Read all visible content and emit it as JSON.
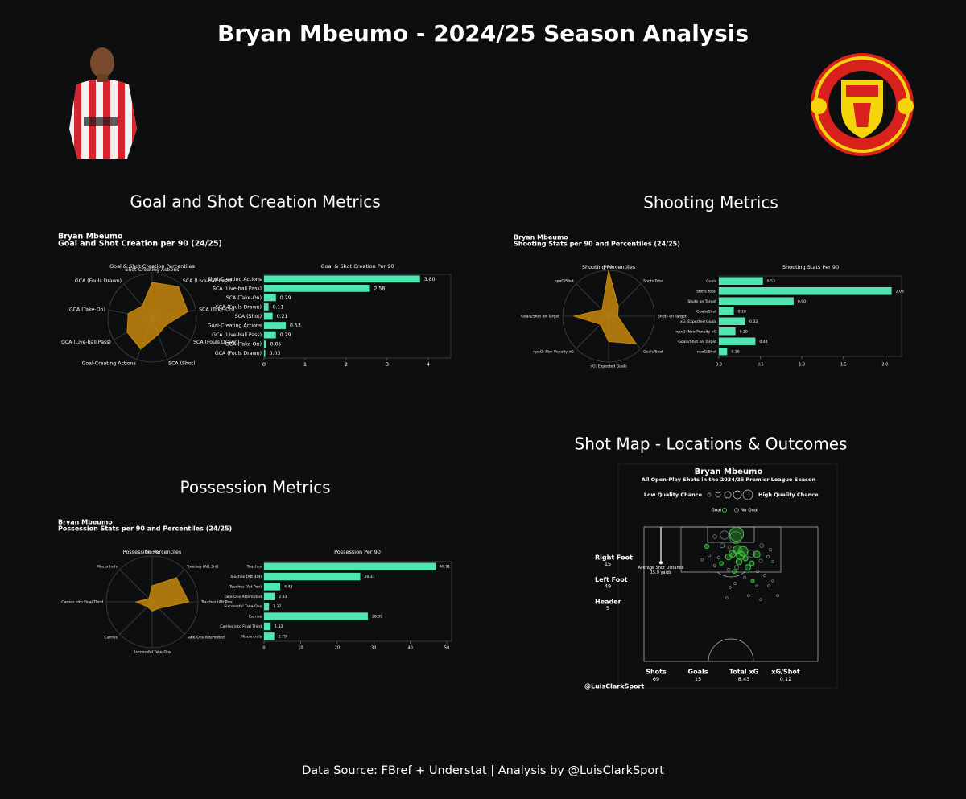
{
  "title": "Bryan Mbeumo - 2024/25 Season Analysis",
  "footer": "Data Source: FBref + Understat | Analysis by @LuisClarkSport",
  "sections": [
    {
      "heading": "Goal and Shot Creation Metrics",
      "player": "Bryan Mbeumo",
      "subtitle": "Goal and Shot Creation per 90 (24/25)"
    },
    {
      "heading": "Shooting Metrics",
      "player": "Bryan Mbeumo",
      "subtitle": "Shooting Stats per 90 and Percentiles (24/25)"
    },
    {
      "heading": "Possession Metrics",
      "player": "Bryan Mbeumo",
      "subtitle": "Possession Stats per 90 and Percentiles (24/25)"
    },
    {
      "heading": "Shot Map - Locations & Outcomes"
    }
  ],
  "chart_data": [
    {
      "type": "radar",
      "title": "Goal & Shot Creation Percentiles",
      "color": "#c8870e",
      "rlim": [
        0,
        100
      ],
      "categories": [
        "Shot-Creating Actions",
        "SCA (Live-ball Pass)",
        "SCA (Take-On)",
        "SCA (Fouls Drawn)",
        "SCA (Shot)",
        "Goal-Creating Actions",
        "GCA (Live-ball Pass)",
        "GCA (Take-On)",
        "GCA (Fouls Drawn)"
      ],
      "values": [
        80,
        92,
        82,
        35,
        40,
        75,
        65,
        55,
        35
      ]
    },
    {
      "type": "hbar",
      "title": "Goal & Shot Creation Per 90",
      "color": "#4fe6b0",
      "categories": [
        "Shot-Creating Actions",
        "SCA (Live-ball Pass)",
        "SCA (Take-On)",
        "SCA (Fouls Drawn)",
        "SCA (Shot)",
        "Goal-Creating Actions",
        "GCA (Live-ball Pass)",
        "GCA (Take-On)",
        "GCA (Fouls Drawn)"
      ],
      "values": [
        3.8,
        2.58,
        0.29,
        0.11,
        0.21,
        0.53,
        0.29,
        0.05,
        0.03
      ],
      "value_labels": [
        "3.80",
        "2.58",
        "0.29",
        "0.11",
        "0.21",
        "0.53",
        "0.29",
        "0.05",
        "0.03"
      ],
      "xlim": [
        0,
        4.55
      ],
      "xticks": [
        0,
        1,
        2,
        3,
        4
      ]
    },
    {
      "type": "radar",
      "title": "Shooting Percentiles",
      "color": "#c8870e",
      "rlim": [
        0,
        100
      ],
      "categories": [
        "Goals",
        "Shots Total",
        "Shots on Target",
        "Goals/Shot",
        "xG: Expected Goals",
        "npxG: Non-Penalty xG",
        "Goals/Shot on Target",
        "npxG/Shot"
      ],
      "values": [
        100,
        30,
        20,
        85,
        55,
        25,
        75,
        20
      ]
    },
    {
      "type": "hbar",
      "title": "Shooting Stats Per 90",
      "color": "#4fe6b0",
      "categories": [
        "Goals",
        "Shots Total",
        "Shots on Target",
        "Goals/Shot",
        "xG: Expected Goals",
        "npxG: Non-Penalty xG",
        "Goals/Shot on Target",
        "npxG/Shot"
      ],
      "values": [
        0.53,
        2.08,
        0.9,
        0.18,
        0.32,
        0.2,
        0.44,
        0.1
      ],
      "value_labels": [
        "0.53",
        "2.08",
        "0.90",
        "0.18",
        "0.32",
        "0.20",
        "0.44",
        "0.10"
      ],
      "xlim": [
        0,
        2.2
      ],
      "xticks": [
        {
          "value": 0,
          "label": "0.0"
        },
        {
          "value": 0.5,
          "label": "0.5"
        },
        {
          "value": 1,
          "label": "1.0"
        },
        {
          "value": 1.5,
          "label": "1.5"
        },
        {
          "value": 2,
          "label": "2.0"
        }
      ]
    },
    {
      "type": "radar",
      "title": "Possession Percentiles",
      "color": "#c8870e",
      "rlim": [
        0,
        100
      ],
      "categories": [
        "Touches",
        "Touches (Att 3rd)",
        "Touches (Att Pen)",
        "Take-Ons Attempted",
        "Successful Take-Ons",
        "Carries",
        "Carries into Final Third",
        "Miscontrols"
      ],
      "values": [
        35,
        75,
        80,
        20,
        20,
        15,
        35,
        10
      ]
    },
    {
      "type": "hbar",
      "title": "Possession Per 90",
      "color": "#4fe6b0",
      "categories": [
        "Touches",
        "Touches (Att 3rd)",
        "Touches (Att Pen)",
        "Take-Ons Attempted",
        "Successful Take-Ons",
        "Carries",
        "Carries into Final Third",
        "Miscontrols"
      ],
      "values": [
        46.91,
        26.31,
        4.43,
        2.93,
        1.37,
        28.39,
        1.82,
        2.79
      ],
      "value_labels": [
        "46.91",
        "26.31",
        "4.43",
        "2.93",
        "1.37",
        "28.39",
        "1.82",
        "2.79"
      ],
      "xlim": [
        0,
        51.3
      ],
      "xticks": [
        0,
        10,
        20,
        30,
        40,
        50
      ]
    },
    {
      "type": "scatter",
      "title": "Bryan Mbeumo",
      "subtitle": "All Open-Play Shots in the 2024/25 Premier League Season",
      "size_legend": [
        "Low Quality Chance",
        "High Quality Chance"
      ],
      "xlim": [
        0,
        80
      ],
      "ylim": [
        60,
        120
      ],
      "series": [
        {
          "name": "Goal",
          "color": "#3cc23c",
          "x": [
            28.9,
            40.7,
            44.4,
            43.7,
            45.6,
            49.6,
            50.0,
            47.8,
            41.5,
            51.9,
            42.6,
            38.9,
            46.7,
            43.0,
            35.6
          ],
          "values": [
            111.4,
            108.1,
            107.4,
            104.5,
            109.2,
            103.8,
            95.9,
            102.0,
            100.2,
            107.8,
            116.8,
            106.7,
            106.0,
            109.9,
            103.8
          ],
          "sizes": [
            0.12,
            0.25,
            0.3,
            0.2,
            0.35,
            0.15,
            0.08,
            0.18,
            0.1,
            0.22,
            0.55,
            0.2,
            0.15,
            0.3,
            0.1
          ]
        },
        {
          "name": "No Goal",
          "color": "#9a9a9a",
          "x": [
            42.2,
            37.0,
            32.6,
            35.9,
            39.3,
            49.3,
            54.1,
            58.1,
            57.0,
            59.3,
            53.7,
            30.0,
            34.4,
            38.9,
            42.6,
            52.2,
            55.6,
            46.3,
            39.6,
            51.9,
            61.5,
            38.1,
            53.7,
            41.9,
            59.3,
            32.6,
            26.7,
            48.1,
            57.4
          ],
          "values": [
            115.3,
            116.4,
            115.7,
            111.7,
            111.0,
            108.1,
            111.7,
            109.9,
            106.7,
            104.5,
            104.9,
            107.4,
            106.3,
            100.9,
            102.0,
            100.2,
            98.4,
            97.3,
            93.0,
            93.7,
            89.4,
            88.3,
            87.6,
            94.8,
            95.9,
            102.7,
            105.3,
            89.4,
            93.7
          ],
          "sizes": [
            0.45,
            0.3,
            0.1,
            0.12,
            0.08,
            0.25,
            0.1,
            0.06,
            0.05,
            0.04,
            0.08,
            0.05,
            0.06,
            0.07,
            0.1,
            0.05,
            0.04,
            0.05,
            0.03,
            0.03,
            0.03,
            0.03,
            0.03,
            0.04,
            0.03,
            0.04,
            0.04,
            0.03,
            0.04
          ]
        }
      ],
      "avg_shot_distance": {
        "label": "Average Shot Distance",
        "value": 15.9,
        "value_label": "15.9 yards"
      },
      "shot_types": [
        {
          "label": "Right Foot",
          "value": 15
        },
        {
          "label": "Left Foot",
          "value": 49
        },
        {
          "label": "Header",
          "value": 5
        }
      ],
      "stats": [
        {
          "label": "Shots",
          "value": 69
        },
        {
          "label": "Goals",
          "value": 15
        },
        {
          "label": "Total xG",
          "value": 8.43
        },
        {
          "label": "xG/Shot",
          "value": 0.12
        }
      ],
      "credit": "@LuisClarkSport"
    }
  ]
}
